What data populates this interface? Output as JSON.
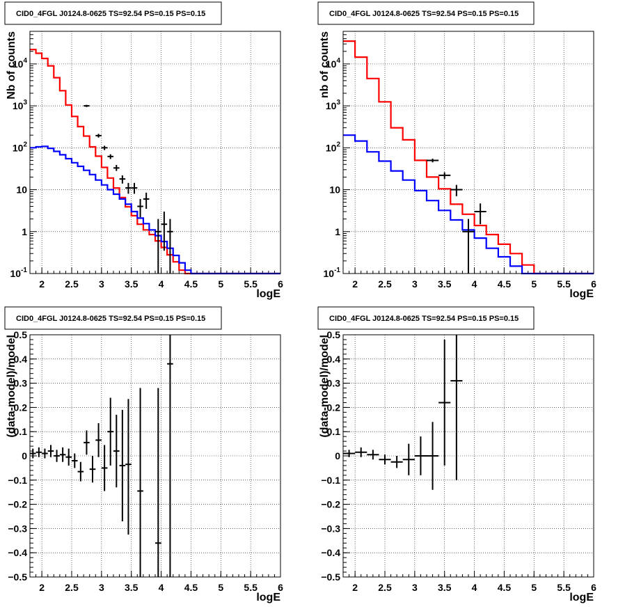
{
  "chart_data": [
    {
      "type": "histogram",
      "title": "CID0_4FGL J0124.8-0625 TS=92.54 PS=0.15 PS=0.15",
      "xlabel": "logE",
      "ylabel": "Nb of counts",
      "xlim": [
        1.8,
        6
      ],
      "ylim": [
        0.1,
        60000
      ],
      "log_y": true,
      "grid": true,
      "x_ticks": [
        "2",
        "2.5",
        "3",
        "3.5",
        "4",
        "4.5",
        "5",
        "5.5",
        "6"
      ],
      "y_ticks": [
        "10^-1",
        "1",
        "10",
        "10^2",
        "10^3",
        "10^4"
      ],
      "bin_edges": [
        1.8,
        1.9,
        2.0,
        2.1,
        2.2,
        2.3,
        2.4,
        2.5,
        2.6,
        2.7,
        2.8,
        2.9,
        3.0,
        3.1,
        3.2,
        3.3,
        3.4,
        3.5,
        3.6,
        3.7,
        3.8,
        3.9,
        4.0,
        4.1,
        4.2,
        4.3,
        4.4,
        4.5,
        4.6,
        4.7,
        4.8,
        4.9,
        5.0,
        5.1,
        5.2,
        5.3,
        5.4,
        5.5,
        5.6,
        5.7,
        5.8,
        5.9,
        6.0
      ],
      "series": [
        {
          "color": "#ff0000",
          "values": [
            22000,
            18000,
            13500,
            9000,
            4700,
            2300,
            1050,
            560,
            320,
            190,
            105,
            63,
            34,
            19,
            11,
            6.5,
            3.9,
            2.4,
            1.5,
            1.1,
            0.85,
            0.6,
            0.42,
            0.28,
            0.19,
            0.12,
            0.1,
            0.1,
            0.1,
            0.1,
            0.1,
            0.1,
            0.1,
            0.1,
            0.1,
            0.1,
            0.1,
            0.1,
            0.1,
            0.1,
            0.1,
            0.1
          ]
        },
        {
          "color": "#0000ff",
          "values": [
            100,
            105,
            108,
            97,
            82,
            68,
            55,
            44,
            36,
            29,
            23,
            17,
            13,
            10,
            7.8,
            6.0,
            4.5,
            3.0,
            2.1,
            1.55,
            1.1,
            0.8,
            0.58,
            0.4,
            0.27,
            0.18,
            0.12,
            0.1,
            0.1,
            0.1,
            0.1,
            0.1,
            0.1,
            0.1,
            0.1,
            0.1,
            0.1,
            0.1,
            0.1,
            0.1,
            0.1,
            0.1
          ]
        }
      ],
      "points": [
        {
          "x": 2.75,
          "y": 1000,
          "lo": 940,
          "hi": 1060
        },
        {
          "x": 2.95,
          "y": 195,
          "lo": 175,
          "hi": 215
        },
        {
          "x": 3.05,
          "y": 100,
          "lo": 88,
          "hi": 112
        },
        {
          "x": 3.15,
          "y": 62,
          "lo": 54,
          "hi": 70
        },
        {
          "x": 3.25,
          "y": 33,
          "lo": 28,
          "hi": 39
        },
        {
          "x": 3.35,
          "y": 18,
          "lo": 14,
          "hi": 22
        },
        {
          "x": 3.45,
          "y": 11,
          "lo": 8,
          "hi": 14.5
        },
        {
          "x": 3.55,
          "y": 11,
          "lo": 8,
          "hi": 14.5
        },
        {
          "x": 3.65,
          "y": 4,
          "lo": 2.2,
          "hi": 6
        },
        {
          "x": 3.75,
          "y": 6,
          "lo": 3.5,
          "hi": 8.5
        },
        {
          "x": 3.95,
          "y": 1,
          "lo": 0.1,
          "hi": 2
        },
        {
          "x": 4.05,
          "y": 1.5,
          "lo": 0.35,
          "hi": 3
        },
        {
          "x": 4.15,
          "y": 1,
          "lo": 0.1,
          "hi": 2
        }
      ]
    },
    {
      "type": "histogram",
      "title": "CID0_4FGL J0124.8-0625 TS=92.54 PS=0.15 PS=0.15",
      "xlabel": "logE",
      "ylabel": "nb of counts",
      "xlim": [
        1.8,
        6
      ],
      "ylim": [
        0.1,
        60000
      ],
      "log_y": true,
      "grid": true,
      "x_ticks": [
        "2",
        "2.5",
        "3",
        "3.5",
        "4",
        "4.5",
        "5",
        "5.5",
        "6"
      ],
      "y_ticks": [
        "10^-1",
        "1",
        "10",
        "10^2",
        "10^3",
        "10^4"
      ],
      "bin_edges": [
        1.8,
        2.0,
        2.2,
        2.4,
        2.6,
        2.8,
        3.0,
        3.2,
        3.4,
        3.6,
        3.8,
        4.0,
        4.2,
        4.4,
        4.6,
        4.8,
        5.0,
        5.2,
        5.4,
        5.6,
        5.8,
        6.0
      ],
      "series": [
        {
          "color": "#ff0000",
          "values": [
            35000,
            14500,
            4500,
            1250,
            300,
            155,
            50,
            20,
            10.5,
            4.5,
            2.6,
            1.4,
            0.85,
            0.5,
            0.3,
            0.16,
            0.1,
            0.1,
            0.1,
            0.1,
            0.1
          ]
        },
        {
          "color": "#0000ff",
          "values": [
            200,
            145,
            80,
            48,
            28,
            17,
            9.5,
            5.5,
            3.2,
            1.9,
            1.1,
            0.7,
            0.4,
            0.25,
            0.15,
            0.1,
            0.1,
            0.1,
            0.1,
            0.1,
            0.1
          ]
        }
      ],
      "points": [
        {
          "x": 3.3,
          "y": 50,
          "lo": 45,
          "hi": 55
        },
        {
          "x": 3.5,
          "y": 22,
          "lo": 18,
          "hi": 26
        },
        {
          "x": 3.7,
          "y": 10,
          "lo": 7,
          "hi": 13
        },
        {
          "x": 3.9,
          "y": 1,
          "lo": 0.1,
          "hi": 2
        },
        {
          "x": 4.1,
          "y": 3,
          "lo": 1.5,
          "hi": 4.7
        }
      ]
    },
    {
      "type": "scatter",
      "title": "CID0_4FGL J0124.8-0625 TS=92.54 PS=0.15 PS=0.15",
      "xlabel": "logE",
      "ylabel": "(data-model)/model",
      "xlim": [
        1.8,
        6
      ],
      "ylim": [
        -0.5,
        0.5
      ],
      "grid": true,
      "x_ticks": [
        "2",
        "2.5",
        "3",
        "3.5",
        "4",
        "4.5",
        "5",
        "5.5",
        "6"
      ],
      "y_ticks": [
        "−0.5",
        "−0.4",
        "−0.3",
        "−0.2",
        "−0.1",
        "0",
        "0.1",
        "0.2",
        "0.3",
        "0.4",
        "0.5"
      ],
      "xerr": 0.05,
      "points": [
        {
          "x": 1.85,
          "y": 0.01,
          "lo": -0.01,
          "hi": 0.03
        },
        {
          "x": 1.95,
          "y": 0.015,
          "lo": -0.005,
          "hi": 0.035
        },
        {
          "x": 2.05,
          "y": 0.01,
          "lo": -0.01,
          "hi": 0.03
        },
        {
          "x": 2.15,
          "y": 0.02,
          "lo": -0.005,
          "hi": 0.045
        },
        {
          "x": 2.25,
          "y": 0.0,
          "lo": -0.025,
          "hi": 0.025
        },
        {
          "x": 2.35,
          "y": 0.005,
          "lo": -0.025,
          "hi": 0.035
        },
        {
          "x": 2.45,
          "y": -0.005,
          "lo": -0.04,
          "hi": 0.03
        },
        {
          "x": 2.55,
          "y": -0.02,
          "lo": -0.05,
          "hi": 0.01
        },
        {
          "x": 2.65,
          "y": -0.065,
          "lo": -0.105,
          "hi": -0.025
        },
        {
          "x": 2.75,
          "y": 0.055,
          "lo": 0.005,
          "hi": 0.105
        },
        {
          "x": 2.85,
          "y": -0.055,
          "lo": -0.11,
          "hi": 0.0
        },
        {
          "x": 2.95,
          "y": 0.065,
          "lo": -0.005,
          "hi": 0.135
        },
        {
          "x": 3.05,
          "y": -0.05,
          "lo": -0.145,
          "hi": 0.045
        },
        {
          "x": 3.15,
          "y": 0.1,
          "lo": -0.04,
          "hi": 0.24
        },
        {
          "x": 3.25,
          "y": 0.02,
          "lo": -0.13,
          "hi": 0.17
        },
        {
          "x": 3.35,
          "y": -0.04,
          "lo": -0.27,
          "hi": 0.19
        },
        {
          "x": 3.45,
          "y": -0.035,
          "lo": -0.325,
          "hi": 0.235
        },
        {
          "x": 3.65,
          "y": -0.145,
          "lo": -0.5,
          "hi": 0.28
        },
        {
          "x": 3.95,
          "y": -0.36,
          "lo": -0.5,
          "hi": 0.28
        },
        {
          "x": 4.15,
          "y": 0.38,
          "lo": -0.5,
          "hi": 0.5
        }
      ]
    },
    {
      "type": "scatter",
      "title": "CID0_4FGL J0124.8-0625 TS=92.54 PS=0.15 PS=0.15",
      "xlabel": "logE",
      "ylabel": "(data-model)/model",
      "xlim": [
        1.8,
        6
      ],
      "ylim": [
        -0.5,
        0.5
      ],
      "grid": true,
      "x_ticks": [
        "2",
        "2.5",
        "3",
        "3.5",
        "4",
        "4.5",
        "5",
        "5.5",
        "6"
      ],
      "y_ticks": [
        "−0.5",
        "−0.4",
        "−0.3",
        "−0.2",
        "−0.1",
        "0",
        "0.1",
        "0.2",
        "0.3",
        "0.4",
        "0.5"
      ],
      "xerr": 0.1,
      "points": [
        {
          "x": 1.9,
          "y": 0.01,
          "lo": -0.005,
          "hi": 0.025
        },
        {
          "x": 2.1,
          "y": 0.015,
          "lo": -0.005,
          "hi": 0.035
        },
        {
          "x": 2.3,
          "y": 0.005,
          "lo": -0.015,
          "hi": 0.025
        },
        {
          "x": 2.5,
          "y": -0.015,
          "lo": -0.035,
          "hi": 0.005
        },
        {
          "x": 2.7,
          "y": -0.025,
          "lo": -0.05,
          "hi": 0.0
        },
        {
          "x": 2.9,
          "y": -0.015,
          "lo": -0.08,
          "hi": 0.05
        },
        {
          "x": 3.1,
          "y": 0.0,
          "lo": -0.08,
          "hi": 0.08
        },
        {
          "x": 3.3,
          "y": 0.0,
          "lo": -0.14,
          "hi": 0.14
        },
        {
          "x": 3.5,
          "y": 0.22,
          "lo": -0.04,
          "hi": 0.48
        },
        {
          "x": 3.7,
          "y": 0.31,
          "lo": -0.1,
          "hi": 0.5
        }
      ]
    }
  ]
}
